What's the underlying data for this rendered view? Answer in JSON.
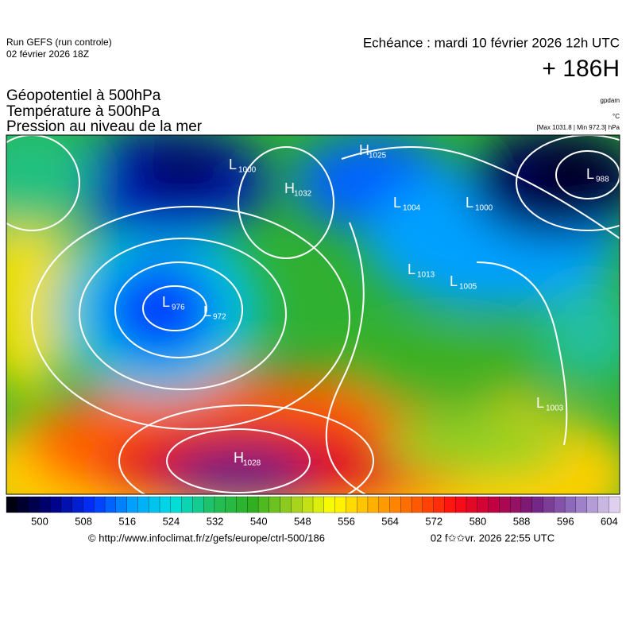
{
  "header": {
    "run": "Run GEFS (run controle)",
    "run_date": "02 février 2026 18Z",
    "valid": "Echéance : mardi 10 février 2026 12h UTC",
    "lead": "+ 186H",
    "fields": [
      "Géopotentiel à 500hPa",
      "Température à 500hPa",
      "Pression au niveau de la mer"
    ],
    "units": [
      "gpdam",
      "°C",
      "[Max 1031.8 | Min 972.3] hPa"
    ]
  },
  "pressure_centers": [
    {
      "letter": "H",
      "value": "1025"
    },
    {
      "letter": "L",
      "value": "1000"
    },
    {
      "letter": "H",
      "value": "1032"
    },
    {
      "letter": "L",
      "value": "1004"
    },
    {
      "letter": "L",
      "value": "1000"
    },
    {
      "letter": "L",
      "value": "988"
    },
    {
      "letter": "L",
      "value": "976"
    },
    {
      "letter": "L",
      "value": "972"
    },
    {
      "letter": "L",
      "value": "1013"
    },
    {
      "letter": "L",
      "value": "1005"
    },
    {
      "letter": "H",
      "value": "1028"
    },
    {
      "letter": "L",
      "value": "1003"
    }
  ],
  "colorbar": {
    "labels": [
      500,
      508,
      516,
      524,
      532,
      540,
      548,
      556,
      564,
      572,
      580,
      588,
      596,
      604
    ]
  },
  "footer": {
    "url": "© http://www.infoclimat.fr/z/gefs/europe/ctrl-500/186",
    "generated": "02 f✩✩vr. 2026 22:55 UTC"
  }
}
